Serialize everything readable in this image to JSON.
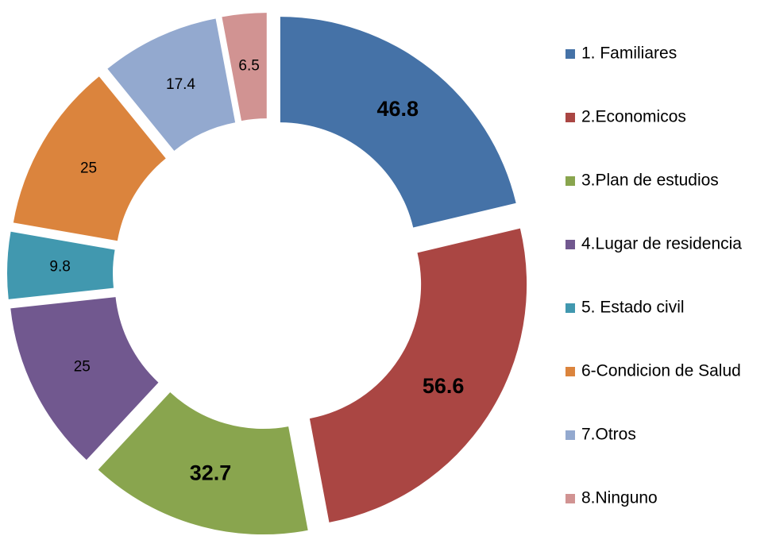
{
  "chart_data": {
    "type": "donut",
    "categories": [
      "1. Familiares",
      "2.Economicos",
      "3.Plan de estudios",
      "4.Lugar de residencia",
      "5. Estado civil",
      "6-Condicion de Salud",
      "7.Otros",
      "8.Ninguno"
    ],
    "values": [
      46.8,
      56.6,
      32.7,
      25,
      9.8,
      25,
      17.4,
      6.5
    ],
    "colors": [
      "#4572a7",
      "#aa4643",
      "#89a54e",
      "#71588f",
      "#4198af",
      "#db843d",
      "#93a9cf",
      "#d19392"
    ],
    "legend": "right"
  }
}
